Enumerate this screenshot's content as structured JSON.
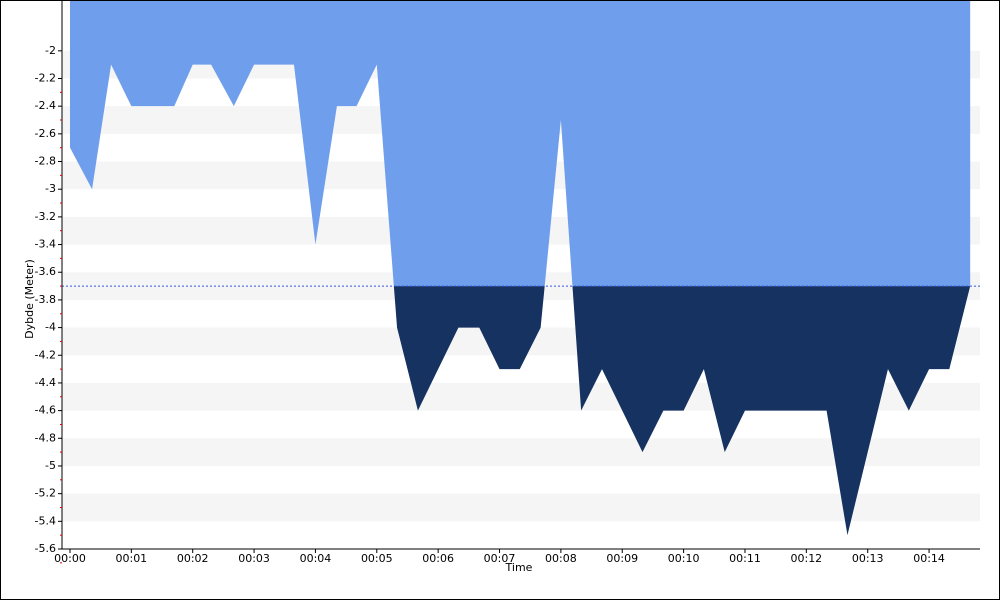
{
  "chart_data": {
    "type": "area",
    "x_label": "Time",
    "y_label": "Dybde (Meter)",
    "x": [
      0,
      0.36,
      0.67,
      1.0,
      1.7,
      2.0,
      2.3,
      2.67,
      3.0,
      3.65,
      4.0,
      4.35,
      4.67,
      5.0,
      5.33,
      5.67,
      6.33,
      6.67,
      7.0,
      7.33,
      7.67,
      8.0,
      8.33,
      8.67,
      9.33,
      9.67,
      10.0,
      10.33,
      10.67,
      11.0,
      12.33,
      12.67,
      13.33,
      13.67,
      14.0,
      14.33,
      14.67
    ],
    "values": [
      -2.7,
      -3.0,
      -2.1,
      -2.4,
      -2.4,
      -2.1,
      -2.1,
      -2.4,
      -2.1,
      -2.1,
      -3.4,
      -2.4,
      -2.4,
      -2.1,
      -4.0,
      -4.6,
      -4.0,
      -4.0,
      -4.3,
      -4.3,
      -4.0,
      -2.5,
      -4.6,
      -4.3,
      -4.9,
      -4.6,
      -4.6,
      -4.3,
      -4.9,
      -4.6,
      -4.6,
      -5.5,
      -4.3,
      -4.6,
      -4.3,
      -4.3,
      -3.7
    ],
    "threshold": -3.7,
    "color": "#6f9fec",
    "threshold_color": "#163261",
    "xlim": [
      -0.13,
      14.83
    ],
    "ylim": [
      -5.6,
      -1.64
    ],
    "xticks": [
      {
        "value": 0,
        "label": "00:00"
      },
      {
        "value": 1,
        "label": "00:01"
      },
      {
        "value": 2,
        "label": "00:02"
      },
      {
        "value": 3,
        "label": "00:03"
      },
      {
        "value": 4,
        "label": "00:04"
      },
      {
        "value": 5,
        "label": "00:05"
      },
      {
        "value": 6,
        "label": "00:06"
      },
      {
        "value": 7,
        "label": "00:07"
      },
      {
        "value": 8,
        "label": "00:08"
      },
      {
        "value": 9,
        "label": "00:09"
      },
      {
        "value": 10,
        "label": "00:10"
      },
      {
        "value": 11,
        "label": "00:11"
      },
      {
        "value": 12,
        "label": "00:12"
      },
      {
        "value": 13,
        "label": "00:13"
      },
      {
        "value": 14,
        "label": "00:14"
      }
    ],
    "yticks": [
      -2,
      -2.2,
      -2.4,
      -2.6,
      -2.8,
      -3,
      -3.2,
      -3.4,
      -3.6,
      -3.8,
      -4,
      -4.2,
      -4.4,
      -4.6,
      -4.8,
      -5,
      -5.2,
      -5.4,
      -5.6
    ],
    "grid": true
  }
}
